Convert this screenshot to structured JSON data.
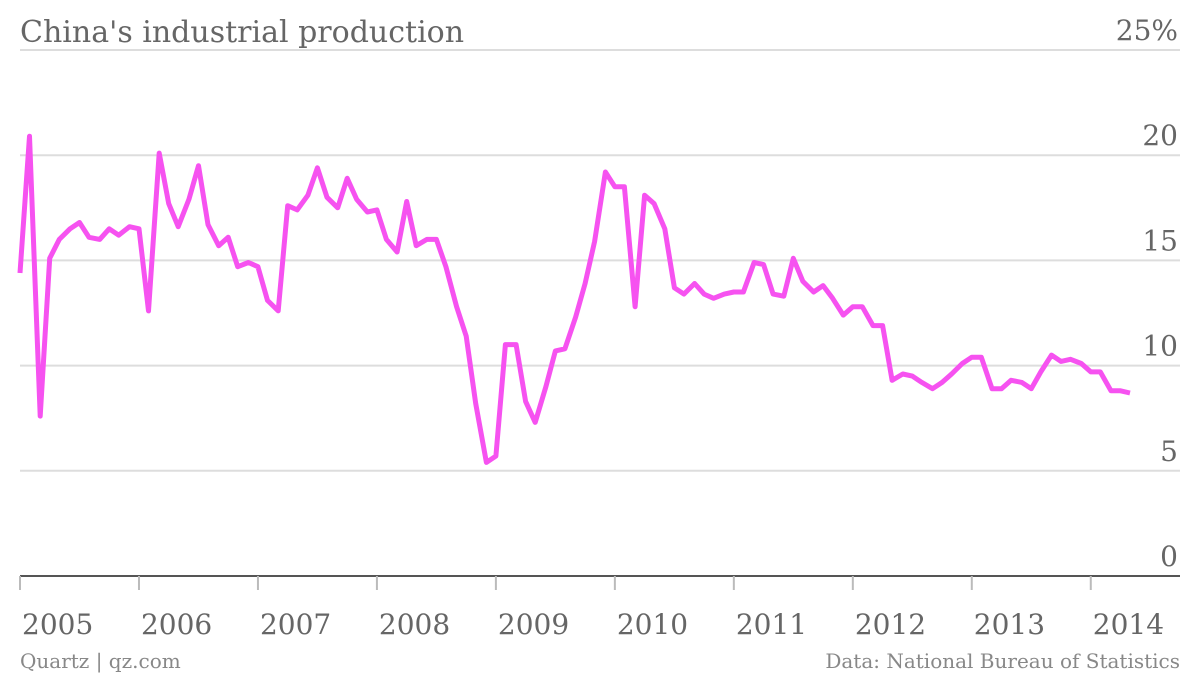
{
  "chart_data": {
    "type": "line",
    "title": "China's industrial production",
    "source": "Data: National Bureau of Statistics",
    "credit": "Quartz | qz.com",
    "color": "#f652f0",
    "grid": true,
    "x": [
      2005.0,
      2005.08,
      2005.17,
      2005.25,
      2005.33,
      2005.42,
      2005.5,
      2005.58,
      2005.67,
      2005.75,
      2005.83,
      2005.92,
      2006.0,
      2006.08,
      2006.17,
      2006.25,
      2006.33,
      2006.42,
      2006.5,
      2006.58,
      2006.67,
      2006.75,
      2006.83,
      2006.92,
      2007.0,
      2007.08,
      2007.17,
      2007.25,
      2007.33,
      2007.42,
      2007.5,
      2007.58,
      2007.67,
      2007.75,
      2007.83,
      2007.92,
      2008.0,
      2008.08,
      2008.17,
      2008.25,
      2008.33,
      2008.42,
      2008.5,
      2008.58,
      2008.67,
      2008.75,
      2008.83,
      2008.92,
      2009.0,
      2009.08,
      2009.17,
      2009.25,
      2009.33,
      2009.42,
      2009.5,
      2009.58,
      2009.67,
      2009.75,
      2009.83,
      2009.92,
      2010.0,
      2010.08,
      2010.17,
      2010.25,
      2010.33,
      2010.42,
      2010.5,
      2010.58,
      2010.67,
      2010.75,
      2010.83,
      2010.92,
      2011.0,
      2011.08,
      2011.17,
      2011.25,
      2011.33,
      2011.42,
      2011.5,
      2011.58,
      2011.67,
      2011.75,
      2011.83,
      2011.92,
      2012.0,
      2012.08,
      2012.17,
      2012.25,
      2012.33,
      2012.42,
      2012.5,
      2012.58,
      2012.67,
      2012.75,
      2012.83,
      2012.92,
      2013.0,
      2013.08,
      2013.17,
      2013.25,
      2013.33,
      2013.42,
      2013.5,
      2013.58,
      2013.67,
      2013.75,
      2013.83,
      2013.92,
      2014.0,
      2014.08,
      2014.17,
      2014.25,
      2014.33
    ],
    "values": [
      14.4,
      20.9,
      7.6,
      15.1,
      16.0,
      16.5,
      16.8,
      16.1,
      16.0,
      16.5,
      16.2,
      16.6,
      16.5,
      12.6,
      20.1,
      17.7,
      16.6,
      17.9,
      19.5,
      16.7,
      15.7,
      16.1,
      14.7,
      14.9,
      14.7,
      13.1,
      12.6,
      17.6,
      17.4,
      18.1,
      19.4,
      18.0,
      17.5,
      18.9,
      17.9,
      17.3,
      17.4,
      16.0,
      15.4,
      17.8,
      15.7,
      16.0,
      16.0,
      14.7,
      12.8,
      11.4,
      8.2,
      5.4,
      5.7,
      11.0,
      11.0,
      8.3,
      7.3,
      9.0,
      10.7,
      10.8,
      12.3,
      13.9,
      15.9,
      19.2,
      18.5,
      18.5,
      12.8,
      18.1,
      17.7,
      16.5,
      13.7,
      13.4,
      13.9,
      13.4,
      13.2,
      13.4,
      13.5,
      13.5,
      14.9,
      14.8,
      13.4,
      13.3,
      15.1,
      14.0,
      13.5,
      13.8,
      13.2,
      12.4,
      12.8,
      12.8,
      11.9,
      11.9,
      9.3,
      9.6,
      9.5,
      9.2,
      8.9,
      9.2,
      9.6,
      10.1,
      10.4,
      10.4,
      8.9,
      8.9,
      9.3,
      9.2,
      8.9,
      9.7,
      10.5,
      10.2,
      10.3,
      10.1,
      9.7,
      9.7,
      8.8,
      8.8,
      8.7
    ],
    "xlim": [
      2005,
      2014.75
    ],
    "xticks": [
      2005,
      2006,
      2007,
      2008,
      2009,
      2010,
      2011,
      2012,
      2013,
      2014
    ],
    "ylim": [
      0,
      25
    ],
    "yticks": [
      0,
      5,
      10,
      15,
      20,
      {
        "value": 25,
        "label": "25%"
      }
    ]
  }
}
